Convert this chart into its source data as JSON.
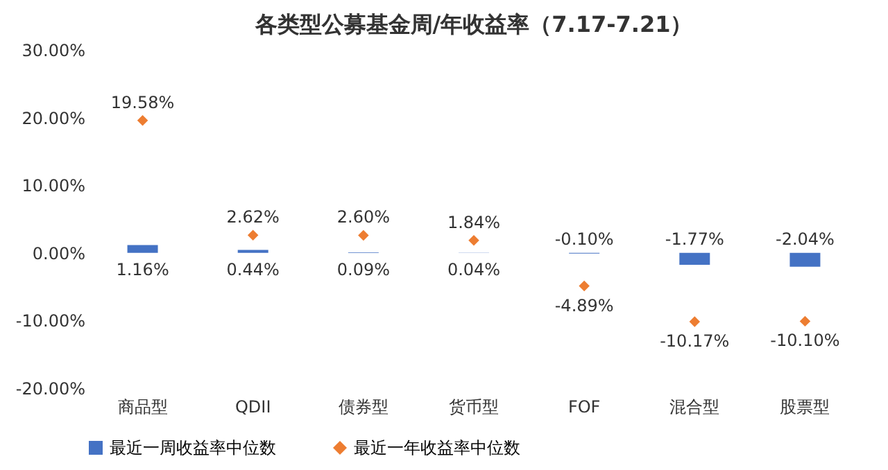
{
  "chart_data": {
    "type": "bar",
    "title": "各类型公募基金周/年收益率（7.17-7.21）",
    "categories": [
      "商品型",
      "QDII",
      "债券型",
      "货币型",
      "FOF",
      "混合型",
      "股票型"
    ],
    "series": [
      {
        "name": "最近一周收益率中位数",
        "color": "#4472c4",
        "values": [
          1.16,
          0.44,
          0.09,
          0.04,
          -0.1,
          -1.77,
          -2.04
        ],
        "value_labels": [
          "1.16%",
          "0.44%",
          "0.09%",
          "0.04%",
          "-0.10%",
          "-1.77%",
          "-2.04%"
        ]
      },
      {
        "name": "最近一年收益率中位数",
        "type": "scatter",
        "marker": "diamond",
        "color": "#ed7d31",
        "values": [
          19.58,
          2.62,
          2.6,
          1.84,
          -4.89,
          -10.17,
          -10.1
        ],
        "value_labels": [
          "19.58%",
          "2.62%",
          "2.60%",
          "1.84%",
          "-4.89%",
          "-10.17%",
          "-10.10%"
        ]
      }
    ],
    "ylim": [
      -20,
      30
    ],
    "yticks": [
      {
        "value": -20,
        "label": "-20.00%"
      },
      {
        "value": -10,
        "label": "-10.00%"
      },
      {
        "value": 0,
        "label": "0.00%"
      },
      {
        "value": 10,
        "label": "10.00%"
      },
      {
        "value": 20,
        "label": "20.00%"
      },
      {
        "value": 30,
        "label": "30.00%"
      }
    ],
    "grid": false,
    "legend": "bottom"
  }
}
